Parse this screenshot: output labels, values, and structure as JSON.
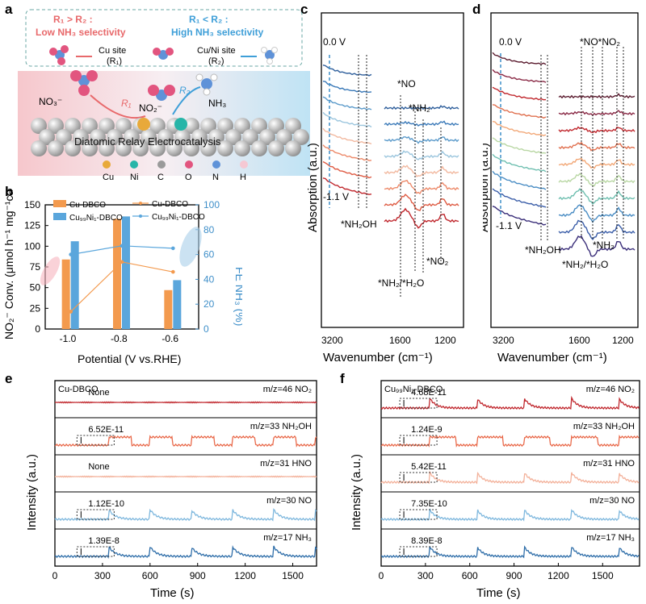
{
  "panel_labels": {
    "a": "a",
    "b": "b",
    "c": "c",
    "d": "d",
    "e": "e",
    "f": "f"
  },
  "panel_a": {
    "cond_low_top": "R",
    "cond_low_text": "Low NH₃ selectivity",
    "cond_high_text": "High NH₃ selectivity",
    "cond_low": "R₁ > R₂ :",
    "cond_high": "R₁ < R₂ :",
    "site_cu": "Cu site",
    "site_cu_r": "(R₁)",
    "site_cuni": "Cu/Ni site",
    "site_cuni_r": "(R₂)",
    "no3": "NO₃⁻",
    "no2": "NO₂⁻",
    "nh3": "NH₃",
    "r1": "R₁",
    "r2": "R₂",
    "title": "Diatomic Relay Electrocatalysis",
    "legend": [
      {
        "label": "Cu",
        "color": "#e8a93a"
      },
      {
        "label": "Ni",
        "color": "#27b5a8"
      },
      {
        "label": "C",
        "color": "#9a9a9a"
      },
      {
        "label": "O",
        "color": "#e2557f"
      },
      {
        "label": "N",
        "color": "#5f92d8"
      },
      {
        "label": "H",
        "color": "#f5c8d3"
      }
    ]
  },
  "panel_b": {
    "legend_bar1": "Cu-DBCO",
    "legend_bar2": "Cu₉₉Ni₁-DBCO",
    "legend_line1": "Cu-DBCO",
    "legend_line2": "Cu₉₉Ni₁-DBCO",
    "ylabel_left": "NO₂⁻ Conv. (μmol h⁻¹ mg⁻¹cat)",
    "ylabel_right": "FE NH₃ (%)",
    "xlabel": "Potential (V vs.RHE)",
    "yticks_left": [
      "0",
      "25",
      "50",
      "75",
      "100",
      "125",
      "150"
    ],
    "yticks_right": [
      "0",
      "20",
      "40",
      "60",
      "80",
      "100"
    ],
    "colors": {
      "orange": "#f39a4e",
      "blue": "#5aa6dc"
    }
  },
  "chart_data": [
    {
      "type": "bar",
      "panel": "b",
      "categories": [
        "-1.0",
        "-0.8",
        "-0.6"
      ],
      "series": [
        {
          "name": "Cu-DBCO",
          "values": [
            84,
            133,
            47
          ]
        },
        {
          "name": "Cu99Ni1-DBCO",
          "values": [
            106,
            136,
            59
          ]
        }
      ],
      "xlabel": "Potential (V vs.RHE)",
      "ylim": [
        0,
        150
      ]
    },
    {
      "type": "line",
      "panel": "b",
      "categories": [
        "-1.0",
        "-0.8",
        "-0.6"
      ],
      "series": [
        {
          "name": "Cu-DBCO",
          "values": [
            14,
            54,
            46
          ]
        },
        {
          "name": "Cu99Ni1-DBCO",
          "values": [
            60,
            67,
            65
          ]
        }
      ],
      "ylim": [
        0,
        100
      ]
    },
    {
      "type": "line",
      "panel": "e",
      "x_ticks": [
        "0",
        "300",
        "600",
        "900",
        "1200",
        "1500"
      ],
      "xlabel": "Time (s)",
      "ylabel": "Intensity (a.u.)",
      "xlim": [
        0,
        1650
      ],
      "traces": [
        {
          "label": "m/z=46 NO₂",
          "value": "None",
          "color": "#c0272d"
        },
        {
          "label": "m/z=33 NH₂OH",
          "value": "6.52E-11",
          "color": "#e96a4b"
        },
        {
          "label": "m/z=31 HNO",
          "value": "None",
          "color": "#f3b19a"
        },
        {
          "label": "m/z=30 NO",
          "value": "1.12E-10",
          "color": "#7fb8de"
        },
        {
          "label": "m/z=17 NH₃",
          "value": "1.39E-8",
          "color": "#2f6ea9"
        }
      ]
    },
    {
      "type": "line",
      "panel": "f",
      "x_ticks": [
        "0",
        "300",
        "600",
        "900",
        "1200",
        "1500"
      ],
      "xlabel": "Time (s)",
      "ylabel": "Intensity (a.u.)",
      "xlim": [
        0,
        1750
      ],
      "traces": [
        {
          "label": "m/z=46 NO₂",
          "value": "4.68E-11",
          "color": "#c0272d"
        },
        {
          "label": "m/z=33 NH₂OH",
          "value": "1.24E-9",
          "color": "#e96a4b"
        },
        {
          "label": "m/z=31 HNO",
          "value": "5.42E-11",
          "color": "#f3b19a"
        },
        {
          "label": "m/z=30 NO",
          "value": "7.35E-10",
          "color": "#7fb8de"
        },
        {
          "label": "m/z=17 NH₃",
          "value": "8.39E-8",
          "color": "#2f6ea9"
        }
      ]
    }
  ],
  "panel_c": {
    "ylabel": "Absorption (a.u.)",
    "xlabel": "Wavenumber (cm⁻¹)",
    "xticks": [
      "3200",
      "1600",
      "1200"
    ],
    "v_start": "0.0 V",
    "v_end": "-1.1 V",
    "ann_no": "*NO",
    "ann_nh2": "*NH₂",
    "ann_nh2oh": "*NH₂OH",
    "ann_nh2h2o": "*NH₂/*H₂O",
    "ann_no2": "*NO₂",
    "colors": [
      "#2f5f9c",
      "#3a79b8",
      "#5c9bcb",
      "#9cc6de",
      "#f2b9a0",
      "#ed8a6a",
      "#de5a42",
      "#c0272d"
    ]
  },
  "panel_d": {
    "ylabel": "Absorption (a.u.)",
    "xlabel": "Wavenumber (cm⁻¹)",
    "xticks": [
      "3200",
      "1600",
      "1200"
    ],
    "v_start": "0.0 V",
    "v_end": "-1.1 V",
    "ann_top": "*NO*NO₂",
    "ann_nh2": "*NH₂",
    "ann_nh2oh": "*NH₂OH",
    "ann_nh2h2o": "*NH₂/*H₂O",
    "colors": [
      "#5a1b2e",
      "#8a2a46",
      "#c0272d",
      "#e0704f",
      "#f2a878",
      "#b9d7a4",
      "#6fbfb0",
      "#4a8dc4",
      "#3a5da8",
      "#3b2f7a"
    ]
  },
  "panel_e": {
    "sample": "Cu-DBCO"
  },
  "panel_f": {
    "sample": "Cu₉₉Ni₁-DBCO"
  }
}
